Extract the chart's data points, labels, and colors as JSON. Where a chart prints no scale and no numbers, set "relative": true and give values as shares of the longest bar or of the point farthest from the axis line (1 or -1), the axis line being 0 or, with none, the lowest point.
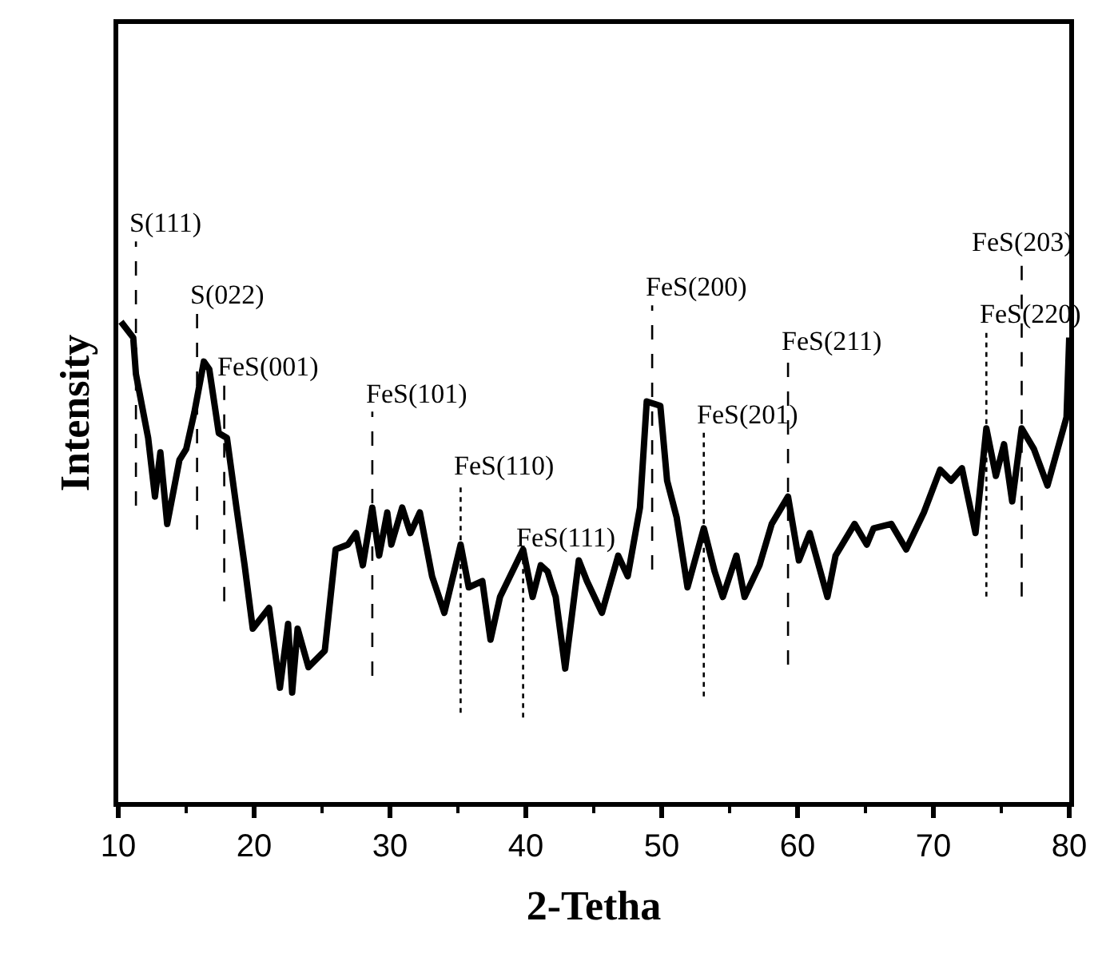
{
  "chart_data": {
    "type": "line",
    "relative": true,
    "xlabel": "2-Tetha",
    "ylabel": "Intensity",
    "xlim": [
      10,
      80
    ],
    "xticks": [
      10,
      20,
      30,
      40,
      50,
      60,
      70,
      80
    ],
    "marker": "none",
    "line_style": "solid",
    "series": [
      {
        "color": "#000000",
        "x": [
          10.2,
          11.1,
          11.3,
          12.2,
          12.7,
          13.1,
          13.6,
          14.5,
          15.0,
          15.6,
          16.3,
          16.7,
          17.4,
          18.0,
          18.7,
          19.3,
          19.9,
          21.1,
          21.9,
          22.5,
          22.8,
          23.2,
          24.0,
          25.2,
          26.0,
          26.9,
          27.5,
          28.0,
          28.7,
          29.2,
          29.8,
          30.1,
          30.9,
          31.5,
          32.2,
          33.1,
          34.0,
          35.2,
          35.8,
          36.8,
          37.4,
          38.1,
          39.8,
          40.5,
          41.1,
          41.6,
          42.2,
          42.9,
          43.9,
          44.5,
          45.6,
          46.8,
          47.5,
          48.4,
          48.9,
          49.9,
          50.4,
          51.1,
          51.9,
          53.1,
          53.9,
          54.5,
          55.5,
          56.1,
          57.2,
          58.1,
          59.3,
          60.1,
          60.9,
          62.2,
          62.8,
          64.2,
          65.1,
          65.6,
          66.9,
          68.0,
          69.3,
          70.5,
          71.3,
          72.1,
          73.1,
          73.9,
          74.6,
          75.2,
          75.8,
          76.5,
          77.4,
          78.4,
          79.8,
          80.0
        ],
        "values": [
          1.0,
          0.967,
          0.891,
          0.758,
          0.636,
          0.728,
          0.579,
          0.712,
          0.735,
          0.811,
          0.917,
          0.901,
          0.768,
          0.758,
          0.613,
          0.493,
          0.361,
          0.404,
          0.238,
          0.371,
          0.228,
          0.361,
          0.281,
          0.315,
          0.526,
          0.536,
          0.56,
          0.493,
          0.613,
          0.513,
          0.603,
          0.536,
          0.613,
          0.56,
          0.603,
          0.47,
          0.394,
          0.536,
          0.447,
          0.46,
          0.338,
          0.427,
          0.526,
          0.427,
          0.493,
          0.48,
          0.427,
          0.278,
          0.503,
          0.46,
          0.394,
          0.513,
          0.47,
          0.613,
          0.834,
          0.825,
          0.669,
          0.593,
          0.447,
          0.57,
          0.48,
          0.427,
          0.513,
          0.427,
          0.493,
          0.579,
          0.636,
          0.503,
          0.56,
          0.427,
          0.513,
          0.579,
          0.536,
          0.57,
          0.579,
          0.526,
          0.603,
          0.692,
          0.669,
          0.695,
          0.56,
          0.778,
          0.679,
          0.745,
          0.626,
          0.778,
          0.735,
          0.659,
          0.801,
          0.967
        ]
      }
    ],
    "ref_lines": [
      {
        "axis": "x",
        "value": 11.3,
        "label": "S(111)",
        "line_style": "dashed"
      },
      {
        "axis": "x",
        "value": 15.8,
        "label": "S(022)",
        "line_style": "dashed"
      },
      {
        "axis": "x",
        "value": 17.8,
        "label": "FeS(001)",
        "line_style": "dashed"
      },
      {
        "axis": "x",
        "value": 28.7,
        "label": "FeS(101)",
        "line_style": "dashed"
      },
      {
        "axis": "x",
        "value": 35.2,
        "label": "FeS(110)",
        "line_style": "dotted"
      },
      {
        "axis": "x",
        "value": 39.8,
        "label": "FeS(111)",
        "line_style": "dotted"
      },
      {
        "axis": "x",
        "value": 49.3,
        "label": "FeS(200)",
        "line_style": "dashed"
      },
      {
        "axis": "x",
        "value": 53.1,
        "label": "FeS(201)",
        "line_style": "dotted"
      },
      {
        "axis": "x",
        "value": 59.3,
        "label": "FeS(211)",
        "line_style": "dashed"
      },
      {
        "axis": "x",
        "value": 73.9,
        "label": "FeS(220)",
        "line_style": "dotted"
      },
      {
        "axis": "x",
        "value": 76.5,
        "label": "FeS(203)",
        "line_style": "dashed"
      }
    ]
  }
}
